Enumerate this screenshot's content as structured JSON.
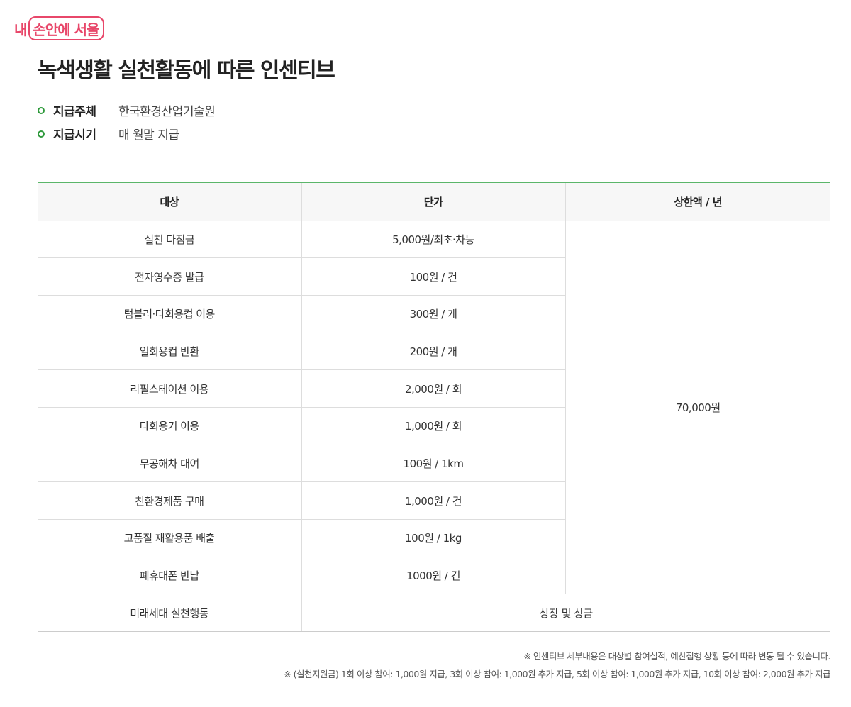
{
  "logo": {
    "prefix": "내",
    "boxed": "손안에 서울"
  },
  "title": "녹색생활 실천활동에 따른 인센티브",
  "info": [
    {
      "label": "지급주체",
      "value": "한국환경산업기술원"
    },
    {
      "label": "지급시기",
      "value": "매 월말 지급"
    }
  ],
  "table": {
    "headers": [
      "대상",
      "단가",
      "상한액 / 년"
    ],
    "rows": [
      {
        "target": "실천 다짐금",
        "price": "5,000원/최초·차등"
      },
      {
        "target": "전자영수증 발급",
        "price": "100원 / 건"
      },
      {
        "target": "텀블러·다회용컵 이용",
        "price": "300원 / 개"
      },
      {
        "target": "일회용컵 반환",
        "price": "200원 / 개"
      },
      {
        "target": "리필스테이션 이용",
        "price": "2,000원 / 회"
      },
      {
        "target": "다회용기 이용",
        "price": "1,000원 / 회"
      },
      {
        "target": "무공해차 대여",
        "price": "100원 / 1km"
      },
      {
        "target": "친환경제품 구매",
        "price": "1,000원 / 건"
      },
      {
        "target": "고품질 재활용품 배출",
        "price": "100원 / 1kg"
      },
      {
        "target": "폐휴대폰 반납",
        "price": "1000원 / 건"
      }
    ],
    "limit": "70,000원",
    "last_row": {
      "target": "미래세대 실천행동",
      "reward": "상장 및 상금"
    }
  },
  "notes": [
    "※ 인센티브 세부내용은 대상별 참여실적, 예산집행 상황 등에 따라 변동 될 수 있습니다.",
    "※ (실천지원금) 1회 이상 참여: 1,000원 지급, 3회 이상 참여: 1,000원 추가 지급, 5회 이상 참여: 1,000원 추가 지급, 10회 이상 참여: 2,000원 추가 지급"
  ]
}
